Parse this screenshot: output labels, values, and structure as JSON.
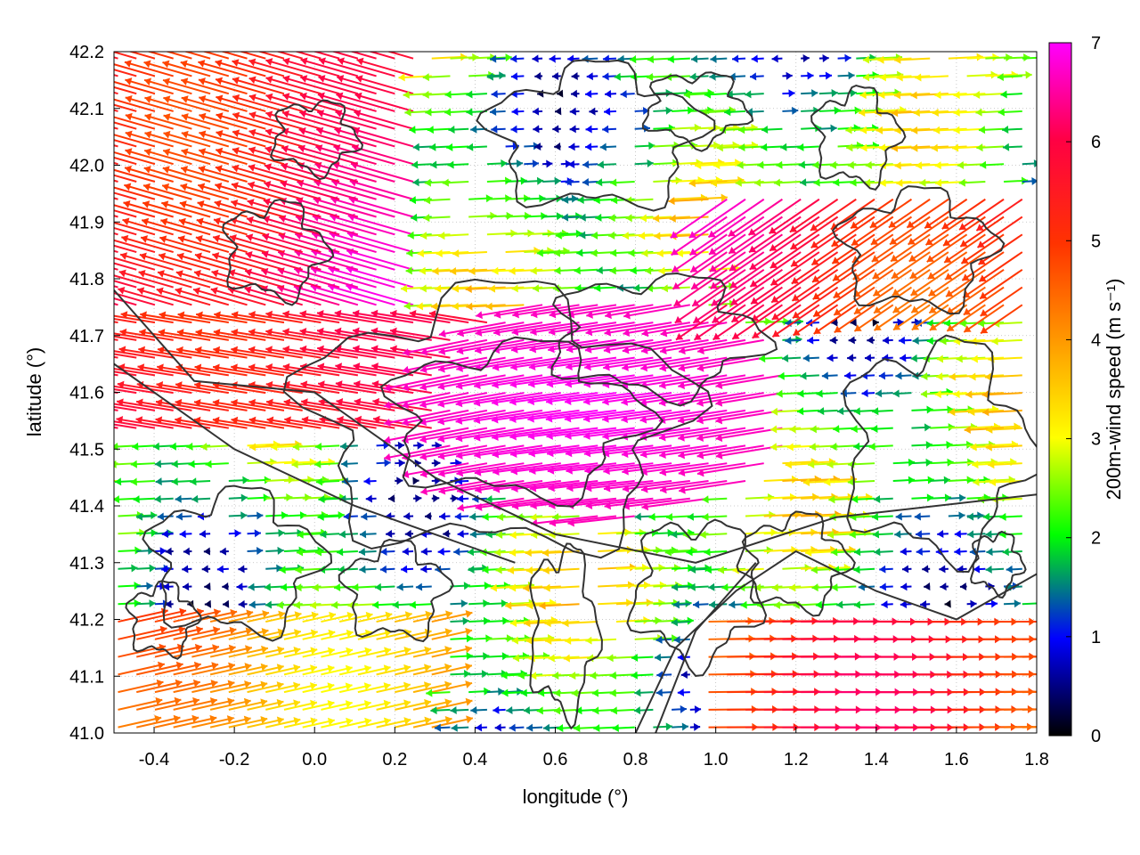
{
  "chart_data": {
    "type": "vector-field",
    "xlabel": "longitude (°)",
    "ylabel": "latitude (°)",
    "xlim": [
      -0.5,
      1.8
    ],
    "ylim": [
      41.0,
      42.2
    ],
    "xticks": [
      "-0.4",
      "-0.2",
      "0.0",
      "0.2",
      "0.4",
      "0.6",
      "0.8",
      "1.0",
      "1.2",
      "1.4",
      "1.6",
      "1.8"
    ],
    "yticks": [
      "41.0",
      "41.1",
      "41.2",
      "41.3",
      "41.4",
      "41.5",
      "41.6",
      "41.7",
      "41.8",
      "41.9",
      "42.0",
      "42.1",
      "42.2"
    ],
    "grid": true,
    "colorbar": {
      "label": "200m-wind speed (m s⁻¹)",
      "range": [
        0,
        7
      ],
      "ticks": [
        "0",
        "1",
        "2",
        "3",
        "4",
        "5",
        "6",
        "7"
      ],
      "colors": [
        "#000000",
        "#0000ff",
        "#00ff00",
        "#ffff00",
        "#ff8000",
        "#ff0000",
        "#ff00ff"
      ]
    },
    "contour_color": "#333333",
    "regions": [
      {
        "lon_range": [
          -0.5,
          0.2
        ],
        "lat_range": [
          41.75,
          42.2
        ],
        "direction": "westward",
        "speed_range": [
          5,
          7
        ]
      },
      {
        "lon_range": [
          0.3,
          1.2
        ],
        "lat_range": [
          41.35,
          41.85
        ],
        "direction": "westward",
        "speed_range": [
          6,
          7
        ]
      },
      {
        "lon_range": [
          -0.5,
          0.4
        ],
        "lat_range": [
          41.55,
          41.75
        ],
        "direction": "westward",
        "speed_range": [
          5,
          6
        ]
      },
      {
        "lon_range": [
          1.0,
          1.8
        ],
        "lat_range": [
          41.0,
          41.2
        ],
        "direction": "eastward",
        "speed_range": [
          4,
          6.5
        ]
      },
      {
        "lon_range": [
          0.3,
          1.8
        ],
        "lat_range": [
          41.15,
          41.35
        ],
        "direction": "mixed",
        "speed_range": [
          0,
          3
        ]
      },
      {
        "lon_range": [
          0.4,
          1.4
        ],
        "lat_range": [
          41.9,
          42.2
        ],
        "direction": "mixed",
        "speed_range": [
          0,
          3
        ]
      }
    ]
  }
}
